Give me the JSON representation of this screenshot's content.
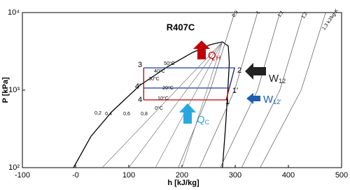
{
  "chart_data": {
    "type": "line",
    "title": "R407C",
    "xlabel": "h [kJ/kg]",
    "ylabel": "P [kPa]",
    "xlim": [
      -100,
      500
    ],
    "xticks": [
      -100,
      {
        "value": 0,
        "label": "-0"
      },
      100,
      200,
      300,
      400,
      500
    ],
    "ylim": [
      100,
      10000
    ],
    "yticks": [
      {
        "value": 100,
        "label": "10²"
      },
      {
        "value": 1000,
        "label": "10³"
      },
      {
        "value": 10000,
        "label": "10⁴"
      }
    ],
    "log_y": true,
    "series": [
      {
        "color": "#000000",
        "x": [
          -4,
          29,
          68,
          121,
          174,
          220,
          253,
          276,
          287,
          289,
          286,
          282,
          276
        ],
        "values": [
          100,
          254,
          526,
          1156,
          2023,
          3062,
          3853,
          4190,
          3698,
          2245,
          979,
          347,
          100
        ]
      },
      {
        "color": "#c00000",
        "x": [
          128,
          128,
          283,
          299
        ],
        "values": [
          1940,
          748,
          748,
          1940
        ]
      },
      {
        "color": "#1f3a93",
        "x": [
          128,
          289,
          299,
          128
        ],
        "values": [
          1065,
          1065,
          1940,
          1940
        ]
      },
      {
        "color": "#555555",
        "x": [
          193,
          253,
          299
        ],
        "values": [
          100,
          1000,
          10000
        ]
      },
      {
        "color": "#555555",
        "x": [
          233,
          299,
          342
        ],
        "values": [
          100,
          1000,
          10000
        ]
      },
      {
        "color": "#555555",
        "x": [
          272,
          342,
          384
        ],
        "values": [
          100,
          1000,
          10000
        ]
      },
      {
        "color": "#555555",
        "x": [
          312,
          384,
          428
        ],
        "values": [
          100,
          1000,
          10000
        ]
      },
      {
        "color": "#555555",
        "x": [
          347,
          424,
          470
        ],
        "values": [
          100,
          1000,
          10000
        ]
      },
      {
        "color": "#777777",
        "x": [
          50,
          276
        ],
        "values": [
          100,
          4190
        ]
      },
      {
        "color": "#777777",
        "x": [
          100,
          276
        ],
        "values": [
          100,
          4190
        ]
      },
      {
        "color": "#777777",
        "x": [
          150,
          276
        ],
        "values": [
          100,
          4190
        ]
      },
      {
        "color": "#777777",
        "x": [
          200,
          276
        ],
        "values": [
          100,
          4190
        ]
      }
    ],
    "isotherm_labels": [
      "50°C",
      "40°C",
      "30°C",
      "20°C",
      "10°C",
      "0°C"
    ],
    "quality_labels": [
      "0,2",
      "0,4",
      "0,6",
      "0,8"
    ],
    "entropy_labels": [
      "0,9",
      "1",
      "1,1",
      "1,2",
      "1,3 kJ/kg-K"
    ],
    "point_labels": [
      "3",
      "2",
      "4'",
      "4",
      "1'",
      "1"
    ],
    "heat_labels": [
      {
        "main": "Q",
        "sub": "H"
      },
      {
        "main": "W",
        "sub": "12"
      },
      {
        "main": "W",
        "sub": "12'"
      },
      {
        "main": "Q",
        "sub": "C"
      }
    ]
  }
}
